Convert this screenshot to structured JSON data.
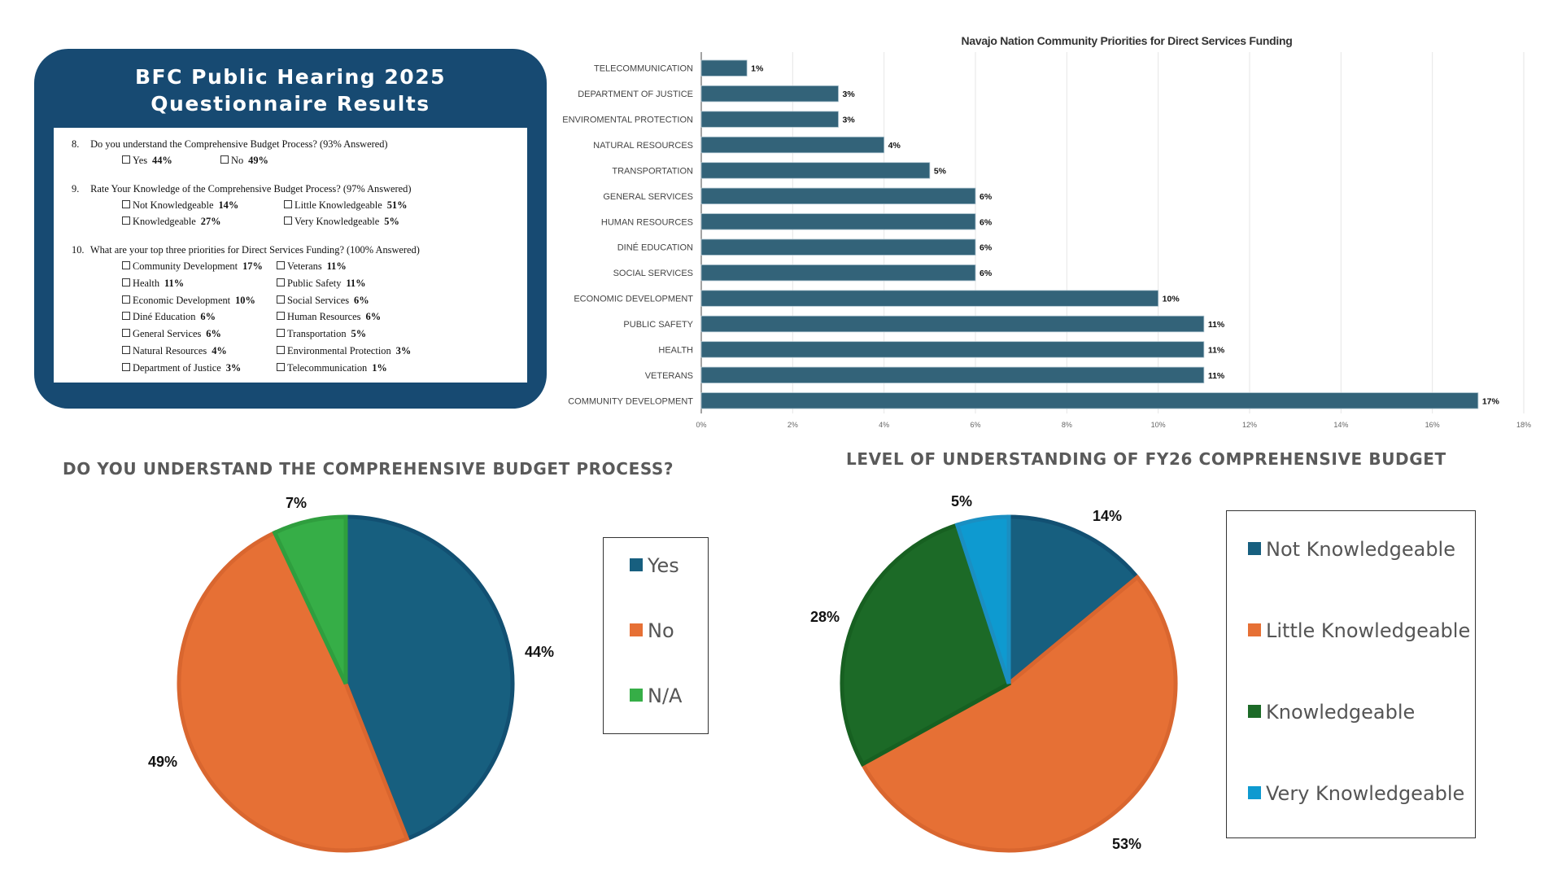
{
  "card": {
    "title_line1": "BFC Public Hearing 2025",
    "title_line2": "Questionnaire Results",
    "questions": [
      {
        "number": "8.",
        "text": "Do you understand the Comprehensive Budget Process? (93% Answered)",
        "options": [
          {
            "label": "Yes",
            "value": "44%"
          },
          {
            "label": "No",
            "value": "49%"
          }
        ]
      },
      {
        "number": "9.",
        "text": "Rate Your Knowledge of the Comprehensive Budget Process? (97% Answered)",
        "options": [
          {
            "label": "Not Knowledgeable",
            "value": "14%"
          },
          {
            "label": "Little Knowledgeable",
            "value": "51%"
          },
          {
            "label": "Knowledgeable",
            "value": "27%"
          },
          {
            "label": "Very Knowledgeable",
            "value": "5%"
          }
        ]
      },
      {
        "number": "10.",
        "text": "What are your top three priorities for Direct Services Funding? (100% Answered)",
        "options": [
          {
            "label": "Community Development",
            "value": "17%"
          },
          {
            "label": "Veterans",
            "value": "11%"
          },
          {
            "label": "Health",
            "value": "11%"
          },
          {
            "label": "Public Safety",
            "value": "11%"
          },
          {
            "label": "Economic Development",
            "value": "10%"
          },
          {
            "label": "Social Services",
            "value": "6%"
          },
          {
            "label": "Diné Education",
            "value": "6%"
          },
          {
            "label": "Human Resources",
            "value": "6%"
          },
          {
            "label": "General Services",
            "value": "6%"
          },
          {
            "label": "Transportation",
            "value": "5%"
          },
          {
            "label": "Natural Resources",
            "value": "4%"
          },
          {
            "label": "Environmental Protection",
            "value": "3%"
          },
          {
            "label": "Department of Justice",
            "value": "3%"
          },
          {
            "label": "Telecommunication",
            "value": "1%"
          }
        ]
      }
    ]
  },
  "colors": {
    "card_bg": "#174a72",
    "bar": "#336379",
    "yes": "#175f7f",
    "no": "#e67035",
    "na": "#36ae47",
    "not_knowledgeable": "#175f7f",
    "little_knowledgeable": "#e67035",
    "knowledgeable": "#1c6a27",
    "very_knowledgeable": "#0e9ad0"
  },
  "chart_data": [
    {
      "type": "bar",
      "orientation": "horizontal",
      "title": "Navajo Nation Community Priorities for Direct Services Funding",
      "categories": [
        "TELECOMMUNICATION",
        "DEPARTMENT OF JUSTICE",
        "ENVIROMENTAL PROTECTION",
        "NATURAL RESOURCES",
        "TRANSPORTATION",
        "GENERAL SERVICES",
        "HUMAN RESOURCES",
        "DINÉ EDUCATION",
        "SOCIAL SERVICES",
        "ECONOMIC DEVELOPMENT",
        "PUBLIC SAFETY",
        "HEALTH",
        "VETERANS",
        "COMMUNITY DEVELOPMENT"
      ],
      "values": [
        1,
        3,
        3,
        4,
        5,
        6,
        6,
        6,
        6,
        10,
        11,
        11,
        11,
        17
      ],
      "value_labels": [
        "1%",
        "3%",
        "3%",
        "4%",
        "5%",
        "6%",
        "6%",
        "6%",
        "6%",
        "10%",
        "11%",
        "11%",
        "11%",
        "17%"
      ],
      "xlim": [
        0,
        18
      ],
      "xticks": [
        0,
        2,
        4,
        6,
        8,
        10,
        12,
        14,
        16,
        18
      ],
      "xtick_labels": [
        "0%",
        "2%",
        "4%",
        "6%",
        "8%",
        "10%",
        "12%",
        "14%",
        "16%",
        "18%"
      ],
      "xlabel": "",
      "ylabel": "",
      "grid": true
    },
    {
      "type": "pie",
      "title": "DO YOU UNDERSTAND THE COMPREHENSIVE BUDGET PROCESS?",
      "labels": [
        "Yes",
        "No",
        "N/A"
      ],
      "values": [
        44,
        49,
        7
      ],
      "value_labels": [
        "44%",
        "49%",
        "7%"
      ],
      "legend_position": "right"
    },
    {
      "type": "pie",
      "title": "LEVEL OF UNDERSTANDING OF FY26 COMPREHENSIVE BUDGET",
      "labels": [
        "Not Knowledgeable",
        "Little Knowledgeable",
        "Knowledgeable",
        "Very Knowledgeable"
      ],
      "values": [
        14,
        53,
        28,
        5
      ],
      "value_labels": [
        "14%",
        "53%",
        "28%",
        "5%"
      ],
      "legend_position": "right"
    }
  ]
}
